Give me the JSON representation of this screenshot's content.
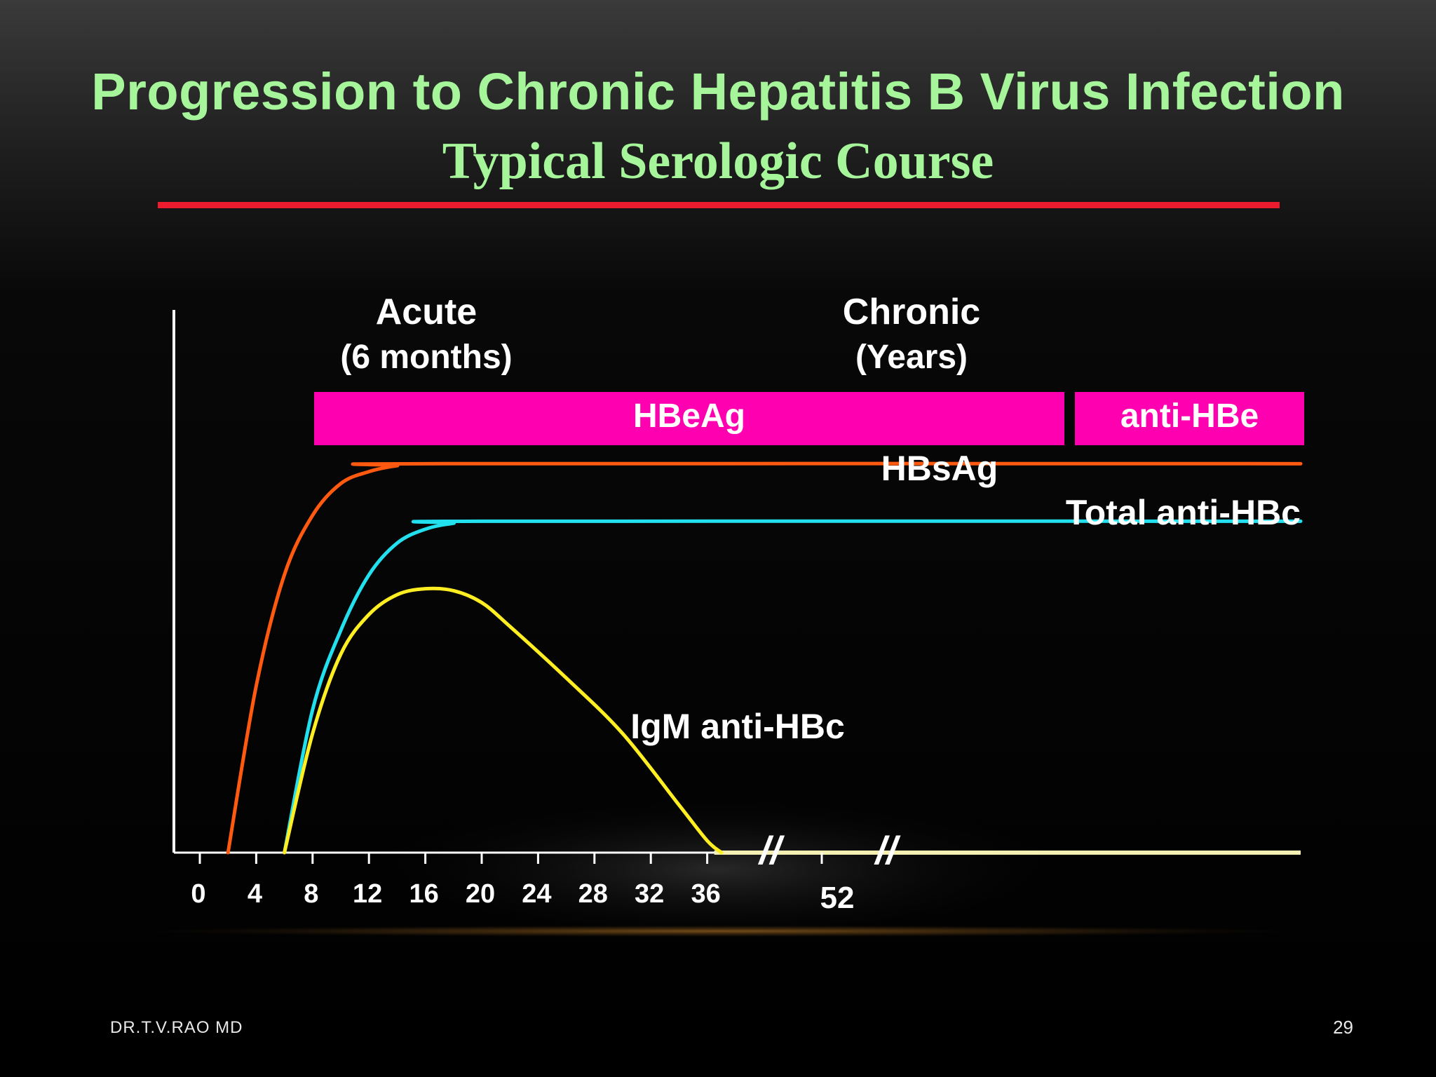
{
  "slide": {
    "title": "Progression to Chronic Hepatitis B Virus Infection",
    "subtitle": "Typical Serologic Course",
    "footer_left": "DR.T.V.RAO MD",
    "page_number": "29"
  },
  "colors": {
    "title": "#a6f59a",
    "rule": "#ec1c2e",
    "bar": "#ff00b0",
    "hbsag": "#ff5a10",
    "total_anti_hbc": "#22e0ee",
    "igm_anti_hbc": "#ffee22",
    "baseline": "#f4f0b4"
  },
  "chart_data": {
    "type": "line",
    "x_ticks": [
      "0",
      "4",
      "8",
      "12",
      "16",
      "20",
      "24",
      "28",
      "32",
      "36",
      "52"
    ],
    "axis_break_marks": [
      "//",
      "//"
    ],
    "phases": [
      {
        "label": "Acute",
        "sublabel": "(6 months)"
      },
      {
        "label": "Chronic",
        "sublabel": "(Years)"
      }
    ],
    "bars": [
      {
        "label": "HBeAg",
        "x_start": 8,
        "x_end": 52
      },
      {
        "label": "anti-HBe",
        "x_start": 52,
        "x_end": 60
      }
    ],
    "series": [
      {
        "name": "HBsAg",
        "x": [
          2,
          4,
          6,
          8,
          10,
          12,
          14,
          16,
          60
        ],
        "y": [
          0,
          42,
          70,
          85,
          93,
          96,
          97.5,
          98,
          98
        ]
      },
      {
        "name": "Total anti-HBc",
        "x": [
          6,
          8,
          10,
          12,
          14,
          16,
          18,
          20,
          60
        ],
        "y": [
          0,
          36,
          56,
          70,
          78,
          81.5,
          83,
          83.5,
          83.5
        ]
      },
      {
        "name": "IgM anti-HBc",
        "x": [
          6,
          8,
          10,
          12,
          14,
          16,
          18,
          20,
          22,
          26,
          30,
          34,
          36,
          38
        ],
        "y": [
          0,
          30,
          50,
          60,
          65,
          66.5,
          66,
          63,
          57,
          44,
          30,
          12,
          3,
          0
        ]
      }
    ]
  }
}
